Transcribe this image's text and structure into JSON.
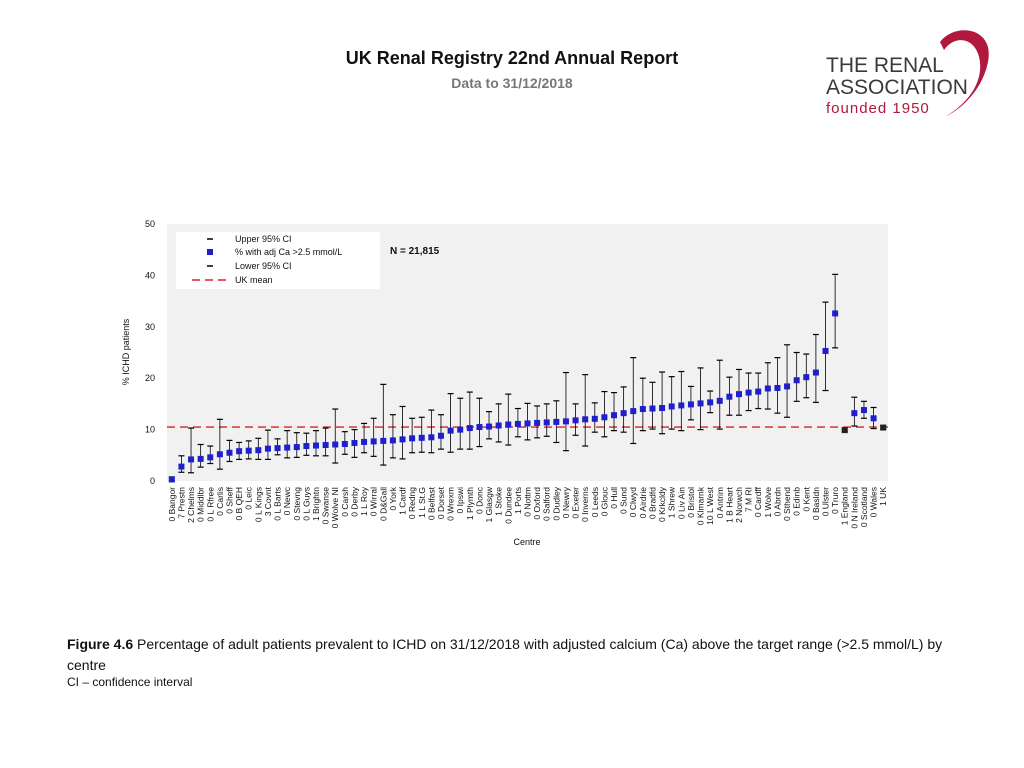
{
  "header": {
    "title": "UK Renal Registry 22nd Annual Report",
    "subtitle": "Data to 31/12/2018"
  },
  "logo": {
    "line1": "THE RENAL",
    "line2": "ASSOCIATION",
    "line3": "founded 1950",
    "color_text": "#3a3a3a",
    "color_swoosh": "#b0183d"
  },
  "caption": {
    "label": "Figure 4.6",
    "text": " Percentage of adult patients prevalent to ICHD on 31/12/2018 with adjusted calcium (Ca) above the target range (>2.5 mmol/L) by centre",
    "note": "CI – confidence interval"
  },
  "chart_data": {
    "type": "scatter",
    "title": "",
    "xlabel": "Centre",
    "ylabel": "% ICHD patients",
    "ylim": [
      0,
      50
    ],
    "yticks": [
      0,
      10,
      20,
      30,
      40,
      50
    ],
    "uk_mean": 10.5,
    "annotation": "N = 21,815",
    "legend": [
      "Upper 95% CI",
      "% with adj Ca >2.5 mmol/L",
      "Lower 95% CI",
      "UK mean"
    ],
    "legend_position": "top-left",
    "colors": {
      "point": "#1f1fcc",
      "ci": "#000000",
      "mean": "#e02020",
      "plot_bg": "#f1f1f1"
    },
    "centres": [
      "0 Bangor",
      "7 Prestn",
      "2 Chelms",
      "0 Middlbr",
      "0 L Rfree",
      "0 Carlis",
      "0 Sheff",
      "0 B QEH",
      "0 Leic",
      "0 L Kings",
      "3 Covnt",
      "0 L Barts",
      "0 Newc",
      "0 Stevng",
      "0 L Guys",
      "1 Brightn",
      "0 Swanse",
      "0 Wolve NI",
      "0 Carsh",
      "0 Derby",
      "1 L Roy",
      "0 Wirral",
      "0 D&Gall",
      "0 York",
      "1 Cardf",
      "0 Redng",
      "1 L St.G",
      "0 Belfast",
      "0 Dorset",
      "0 Wrexm",
      "0 Ipswi",
      "1 Plymth",
      "0 Donc",
      "1 Glasgw",
      "1 Stoke",
      "0 Dundee",
      "1 Ports",
      "0 Nottm",
      "0 Oxford",
      "0 Salford",
      "0 Dudley",
      "0 Newry",
      "0 Exeter",
      "0 Inverns",
      "0 Leeds",
      "0 Glouc",
      "0 Hull",
      "0 Sund",
      "0 Clwyd",
      "0 Airdrie",
      "0 Bradfd",
      "0 Krkcldy",
      "1 Shrew",
      "0 Liv Ain",
      "0 Bristol",
      "0 Klmarnk",
      "10 L West",
      "0 Antrim",
      "1 B Heart",
      "2 Norwch",
      "7 M RI",
      "0 Cardff",
      "1 Wolve",
      "0 Abrdn",
      "0 Sthend",
      "0 Edinb",
      "0 Kent",
      "0 Basldn",
      "0 Ulster",
      "0 Truro",
      "1 England",
      "0 N Ireland",
      "0 Scotland",
      "0 Wales",
      "1 UK"
    ],
    "values": [
      0.3,
      2.8,
      4.2,
      4.3,
      4.6,
      5.2,
      5.5,
      5.8,
      5.9,
      6.0,
      6.3,
      6.4,
      6.5,
      6.6,
      6.8,
      6.9,
      7.0,
      7.1,
      7.2,
      7.4,
      7.6,
      7.7,
      7.8,
      7.9,
      8.1,
      8.3,
      8.4,
      8.5,
      8.8,
      9.8,
      10.0,
      10.3,
      10.5,
      10.6,
      10.8,
      11.0,
      11.1,
      11.2,
      11.3,
      11.4,
      11.5,
      11.6,
      11.8,
      12.0,
      12.1,
      12.4,
      12.8,
      13.2,
      13.6,
      14.0,
      14.1,
      14.2,
      14.5,
      14.7,
      14.9,
      15.1,
      15.3,
      15.6,
      16.4,
      16.9,
      17.2,
      17.4,
      18.0,
      18.1,
      18.4,
      19.6,
      20.2,
      21.1,
      25.3,
      32.6,
      9.9,
      13.2,
      13.8,
      12.2,
      10.4
    ],
    "upper": [
      0.8,
      4.9,
      10.3,
      7.1,
      6.8,
      12.0,
      7.9,
      7.5,
      7.8,
      8.3,
      9.9,
      8.2,
      9.8,
      9.4,
      9.3,
      9.8,
      10.3,
      14.0,
      9.6,
      10.0,
      11.2,
      12.2,
      18.8,
      12.9,
      14.5,
      12.2,
      12.4,
      13.8,
      12.9,
      17.0,
      16.1,
      17.3,
      16.1,
      13.5,
      15.0,
      16.9,
      14.1,
      15.1,
      14.6,
      15.0,
      15.6,
      21.1,
      15.0,
      20.7,
      15.2,
      17.4,
      17.2,
      18.3,
      24.0,
      20.0,
      19.2,
      21.2,
      20.3,
      21.3,
      18.4,
      22.0,
      17.5,
      23.5,
      20.2,
      21.7,
      21.0,
      21.0,
      23.0,
      24.0,
      26.5,
      25.0,
      24.7,
      28.5,
      34.8,
      40.2,
      10.3,
      16.3,
      15.5,
      14.3,
      10.7
    ],
    "lower": [
      0.0,
      1.7,
      1.6,
      2.7,
      3.4,
      2.3,
      3.8,
      4.2,
      4.3,
      4.2,
      4.2,
      5.1,
      4.5,
      4.6,
      5.0,
      4.9,
      4.9,
      3.5,
      5.2,
      4.6,
      5.5,
      4.8,
      3.1,
      4.5,
      4.3,
      5.5,
      5.6,
      5.5,
      6.2,
      5.6,
      6.2,
      6.2,
      6.7,
      8.2,
      7.6,
      7.0,
      8.6,
      8.0,
      8.4,
      8.7,
      7.5,
      5.9,
      8.9,
      6.8,
      9.5,
      8.6,
      9.8,
      9.5,
      7.3,
      9.8,
      10.1,
      9.2,
      10.1,
      9.8,
      11.9,
      10.0,
      13.3,
      10.1,
      12.8,
      12.8,
      13.7,
      14.1,
      14.0,
      13.2,
      12.4,
      15.5,
      16.2,
      15.3,
      17.6,
      25.9,
      9.6,
      10.7,
      12.2,
      10.2,
      10.1
    ]
  }
}
